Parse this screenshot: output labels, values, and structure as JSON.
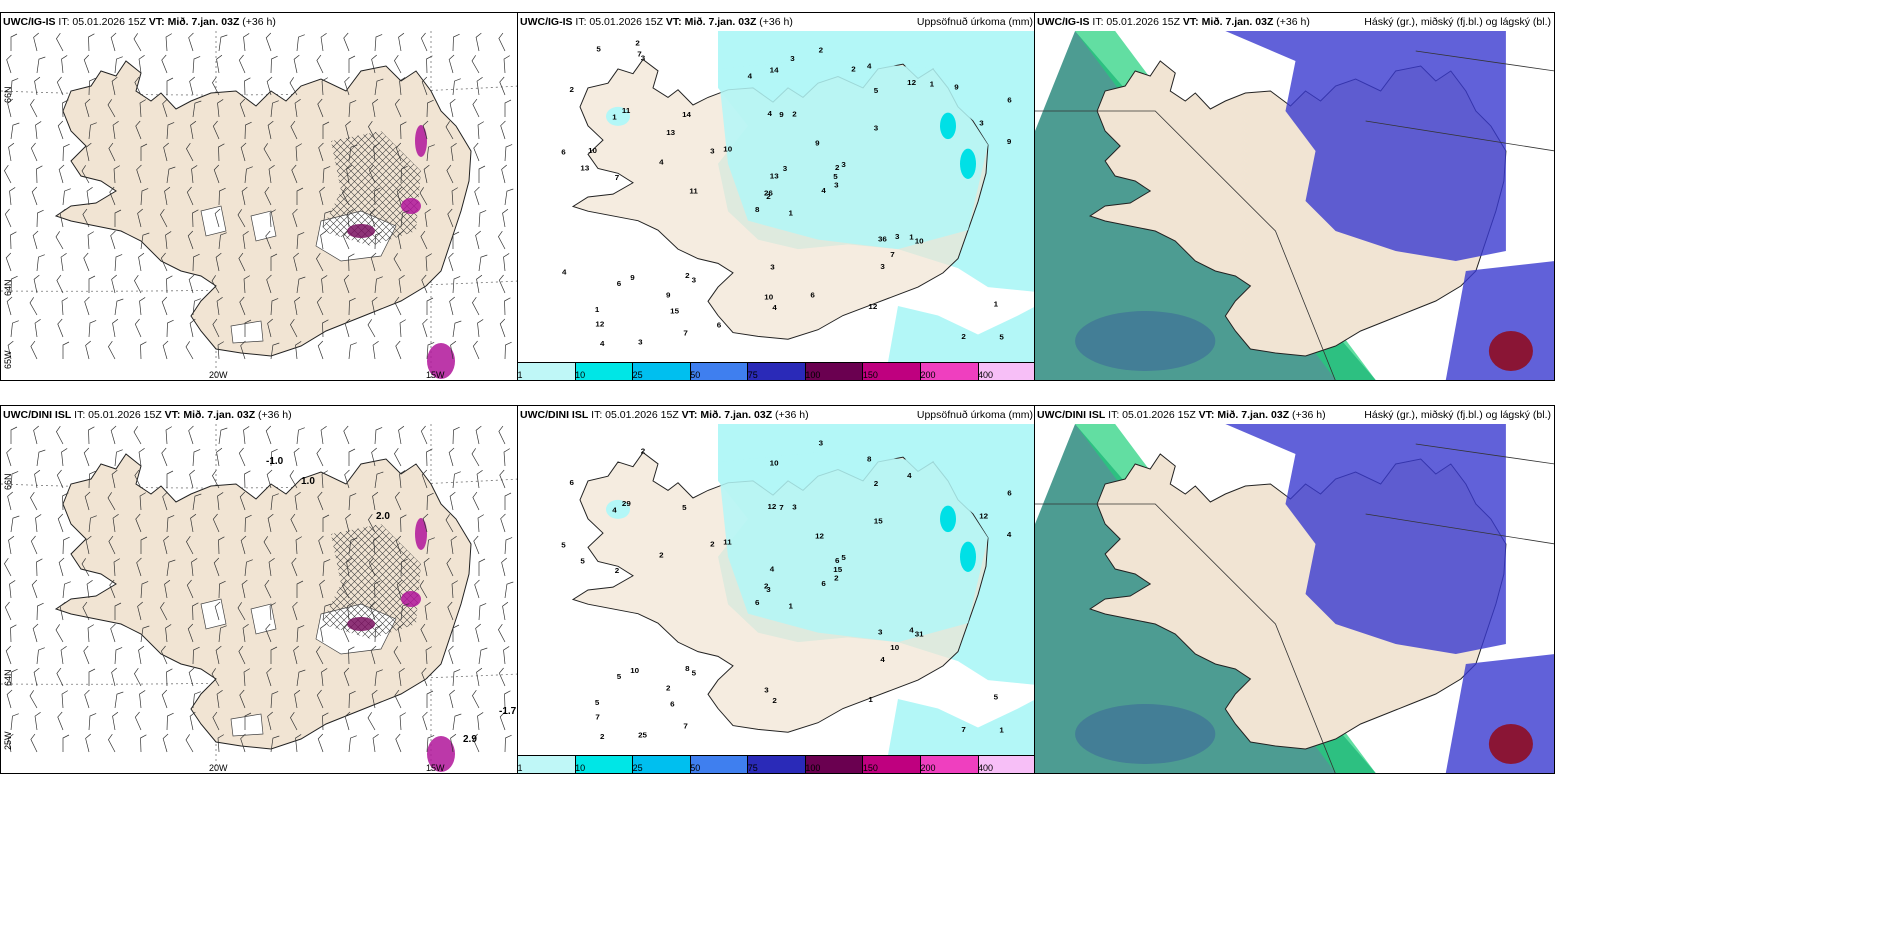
{
  "rows": [
    {
      "model": "UWC/IG-IS",
      "issue": "IT: 05.01.2026 15Z",
      "valid_prefix": "VT:",
      "valid": "Mið. 7.jan. 03Z",
      "lead": "(+36 h)",
      "left_map": {
        "lat_labels": [
          "66N",
          "64N",
          "65W"
        ],
        "lon_labels": [
          "20W",
          "15W"
        ]
      }
    },
    {
      "model": "UWC/DINI ISL",
      "issue": "IT: 05.01.2026 15Z",
      "valid_prefix": "VT:",
      "valid": "Mið. 7.jan. 03Z",
      "lead": "(+36 h)",
      "left_map": {
        "lat_labels": [
          "66N",
          "64N",
          "25W"
        ],
        "lon_labels": [
          "20W",
          "15W"
        ]
      }
    }
  ],
  "precip_title": "Uppsöfnuð úrkoma (mm)",
  "cloud_title": "Háský (gr.), miðský (fj.bl.) og lágský (bl.)",
  "colorbar": {
    "labels": [
      "1",
      "10",
      "25",
      "50",
      "75",
      "100",
      "150",
      "200",
      "400"
    ],
    "colors": [
      "#bff7f7",
      "#00e6e6",
      "#00bfef",
      "#3f7fef",
      "#2a2ab8",
      "#6a0050",
      "#bf007f",
      "#ef3fbf",
      "#f7bff7"
    ]
  },
  "colors": {
    "land": "#f1e4d3",
    "precip_light": "#b3f7f7",
    "precip_mid": "#00e0e6",
    "cloud_high": "#3a3ad0",
    "cloud_mid": "#3aa8d0",
    "cloud_low": "#2e8b7f",
    "cloud_green": "#1fd07a"
  },
  "precip_values_top": [
    "1",
    "1",
    "2",
    "1",
    "2",
    "3",
    "4",
    "2",
    "5",
    "4",
    "3",
    "5",
    "7",
    "6",
    "8",
    "3",
    "3",
    "4",
    "9",
    "9",
    "10",
    "12",
    "15",
    "9",
    "3",
    "10",
    "11",
    "14",
    "13",
    "36",
    "9",
    "26",
    "10",
    "13",
    "14",
    "12",
    "2",
    "2",
    "1",
    "1",
    "2",
    "3",
    "4",
    "3",
    "7",
    "6",
    "5",
    "4",
    "4",
    "3",
    "6",
    "3",
    "2",
    "7",
    "12",
    "9",
    "7",
    "5",
    "6",
    "9",
    "3",
    "11",
    "10",
    "13",
    "1",
    "2",
    "2",
    "4",
    "3",
    "4",
    "3",
    "6",
    "3"
  ],
  "precip_values_bottom": [
    "1",
    "4",
    "3",
    "5",
    "6",
    "5",
    "8",
    "3",
    "2",
    "6",
    "2",
    "1",
    "2",
    "6",
    "6",
    "15",
    "25",
    "12",
    "12",
    "10",
    "11",
    "7",
    "6",
    "7",
    "5",
    "31",
    "29",
    "10",
    "5",
    "3",
    "4",
    "2",
    "3",
    "4",
    "5",
    "4",
    "8",
    "7",
    "5",
    "4",
    "3",
    "2",
    "2",
    "4",
    "7",
    "5",
    "15",
    "2",
    "2",
    "2",
    "5",
    "12",
    "6",
    "10",
    "1",
    "2"
  ],
  "wind_labels_bottom": [
    "-1.0",
    "-1.7",
    "2.0",
    "1.0",
    "2.9"
  ]
}
